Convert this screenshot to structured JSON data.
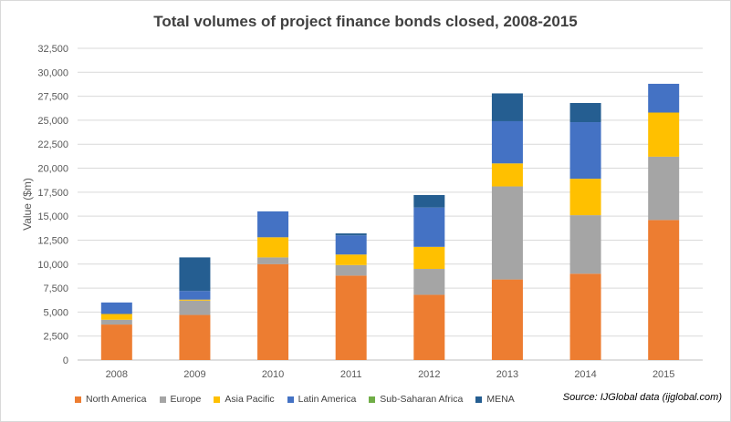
{
  "chart_data": {
    "type": "bar",
    "stacked": true,
    "title": "Total volumes of project finance bonds closed, 2008-2015",
    "xlabel": "",
    "ylabel": "Value ($m)",
    "ylim": [
      0,
      32500
    ],
    "yticks": [
      "0",
      "2,500",
      "5,000",
      "7,500",
      "10,000",
      "12,500",
      "15,000",
      "17,500",
      "20,000",
      "22,500",
      "25,000",
      "27,500",
      "30,000",
      "32,500"
    ],
    "grid": true,
    "legend_position": "bottom",
    "categories": [
      "2008",
      "2009",
      "2010",
      "2011",
      "2012",
      "2013",
      "2014",
      "2015"
    ],
    "series": [
      {
        "name": "North America",
        "color": "#ed7d31",
        "values": [
          3700,
          4700,
          10000,
          8800,
          6800,
          8400,
          9000,
          14600
        ]
      },
      {
        "name": "Europe",
        "color": "#a5a5a5",
        "values": [
          500,
          1500,
          700,
          1100,
          2700,
          9700,
          6100,
          6600
        ]
      },
      {
        "name": "Asia Pacific",
        "color": "#ffc000",
        "values": [
          600,
          100,
          2100,
          1100,
          2300,
          2400,
          3800,
          4600
        ]
      },
      {
        "name": "Latin America",
        "color": "#4472c4",
        "values": [
          1200,
          900,
          2700,
          2000,
          4100,
          4400,
          5900,
          3000
        ]
      },
      {
        "name": "Sub-Saharan Africa",
        "color": "#70ad47",
        "values": [
          0,
          0,
          0,
          0,
          0,
          0,
          0,
          0
        ]
      },
      {
        "name": "MENA",
        "color": "#255e91",
        "values": [
          0,
          3500,
          0,
          200,
          1300,
          2900,
          2000,
          0
        ]
      }
    ]
  },
  "source": "Source: IJGlobal data (ijglobal.com)"
}
